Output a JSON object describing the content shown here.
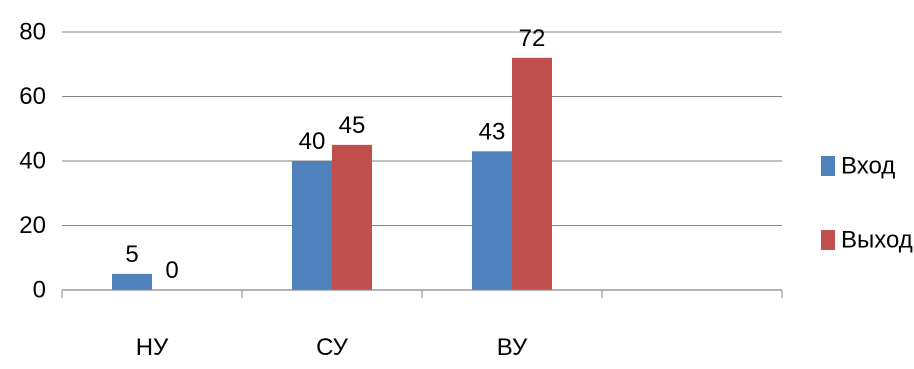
{
  "chart_data": {
    "type": "bar",
    "categories": [
      "НУ",
      "СУ",
      "ВУ",
      ""
    ],
    "series": [
      {
        "name": "Вход",
        "values": [
          5,
          40,
          43,
          null
        ],
        "data_labels": [
          "5",
          "40",
          "43",
          ""
        ],
        "color": "#4F81BD"
      },
      {
        "name": "Выход",
        "values": [
          0,
          45,
          72,
          null
        ],
        "data_labels": [
          "0",
          "45",
          "72",
          ""
        ],
        "color": "#C0504D"
      }
    ],
    "title": "",
    "xlabel": "",
    "ylabel": "",
    "ylim": [
      0,
      80
    ],
    "yticks": [
      0,
      20,
      40,
      60,
      80
    ],
    "ytick_labels": [
      "0",
      "20",
      "40",
      "60",
      "80"
    ],
    "grid": true,
    "legend_position": "right"
  }
}
